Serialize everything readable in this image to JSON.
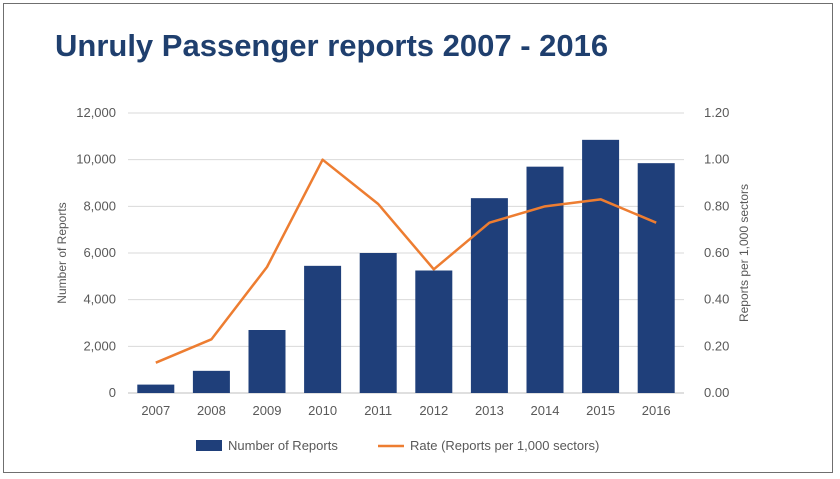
{
  "chart_data": {
    "type": "bar",
    "title": "Unruly Passenger reports 2007 - 2016",
    "categories": [
      "2007",
      "2008",
      "2009",
      "2010",
      "2011",
      "2012",
      "2013",
      "2014",
      "2015",
      "2016"
    ],
    "series": [
      {
        "name": "Number of Reports",
        "type": "bar",
        "axis": "left",
        "color": "#1f3f7a",
        "values": [
          360,
          950,
          2700,
          5450,
          6000,
          5250,
          8350,
          9700,
          10850,
          9850
        ]
      },
      {
        "name": "Rate (Reports per 1,000 sectors)",
        "type": "line",
        "axis": "right",
        "color": "#ed7d31",
        "values": [
          0.13,
          0.23,
          0.54,
          1.0,
          0.81,
          0.53,
          0.73,
          0.8,
          0.83,
          0.73
        ]
      }
    ],
    "ylabel": "Number of Reports",
    "y2label": "Reports per 1,000 sectors",
    "ylim": [
      0,
      12000
    ],
    "y2lim": [
      0,
      1.2
    ],
    "yticks": [
      "0",
      "2,000",
      "4,000",
      "6,000",
      "8,000",
      "10,000",
      "12,000"
    ],
    "y2ticks": [
      "0.00",
      "0.20",
      "0.40",
      "0.60",
      "0.80",
      "1.00",
      "1.20"
    ],
    "grid": true,
    "legend_position": "bottom"
  }
}
